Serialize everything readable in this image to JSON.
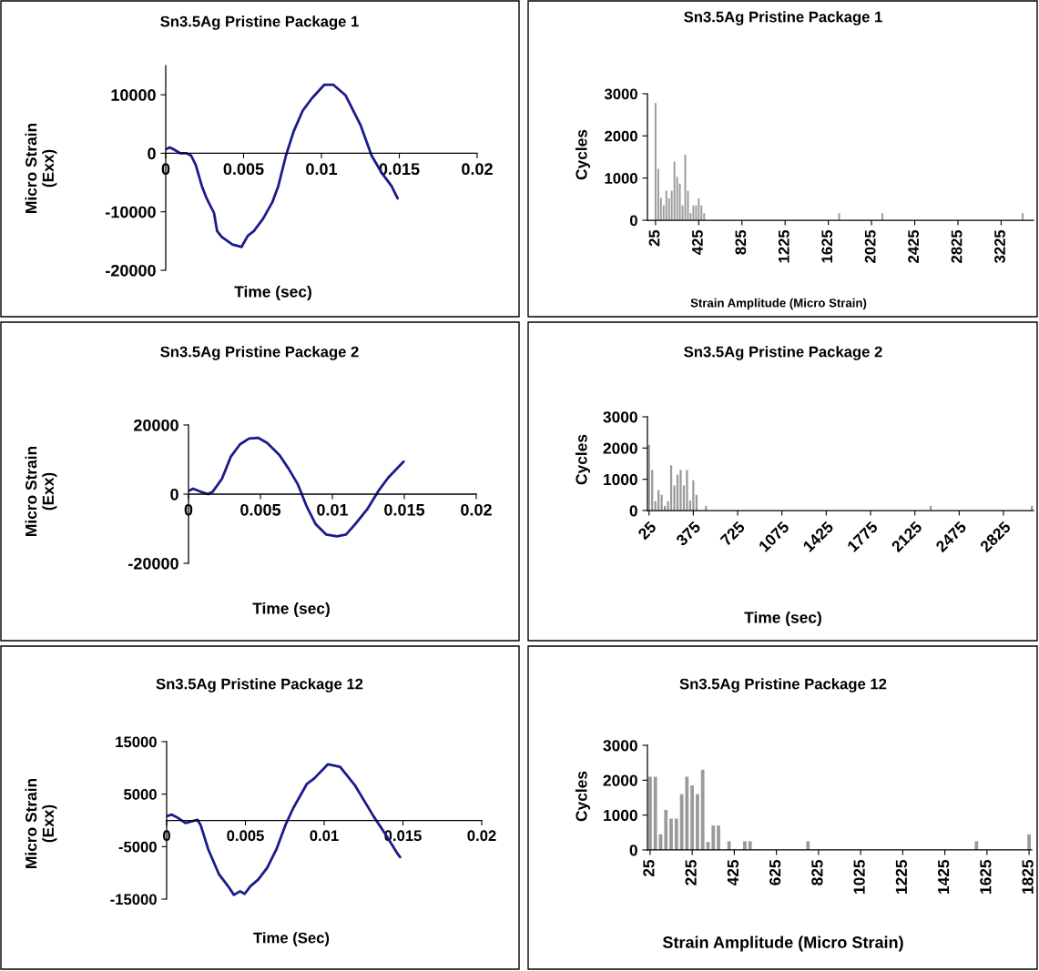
{
  "chart_data": [
    {
      "type": "line",
      "title": "Sn3.5Ag Pristine Package 1",
      "xlabel": "Time (sec)",
      "ylabel": "Micro Strain\n(Exx)",
      "xlim": [
        0,
        0.02
      ],
      "xticks": [
        0,
        0.005,
        0.01,
        0.015,
        0.02
      ],
      "ylim": [
        -20000,
        15000
      ],
      "yticks": [
        -20000,
        -10000,
        0,
        10000
      ],
      "series": [
        {
          "color": "#1a1a8c",
          "x": [
            0,
            0.00026,
            0.00055,
            0.00094,
            0.00134,
            0.00163,
            0.00193,
            0.00232,
            0.00261,
            0.0031,
            0.0033,
            0.0036,
            0.00428,
            0.00487,
            0.00527,
            0.00566,
            0.00625,
            0.00684,
            0.00723,
            0.00772,
            0.00821,
            0.0088,
            0.00939,
            0.01018,
            0.01077,
            0.01155,
            0.01253,
            0.01322,
            0.01391,
            0.0145,
            0.01489
          ],
          "values": [
            700,
            1000,
            600,
            0,
            0,
            -400,
            -2000,
            -5600,
            -7600,
            -10200,
            -13300,
            -14300,
            -15600,
            -16000,
            -14100,
            -13300,
            -11200,
            -8400,
            -5600,
            -400,
            3700,
            7300,
            9400,
            11700,
            11700,
            9900,
            4700,
            -400,
            -3500,
            -5600,
            -7700
          ]
        }
      ]
    },
    {
      "type": "line",
      "title": "Sn3.5Ag Pristine Package 2",
      "xlabel": "Time (sec)",
      "ylabel": "Micro Strain\n(Exx)",
      "xlim": [
        0,
        0.02
      ],
      "xticks": [
        0,
        0.005,
        0.01,
        0.015,
        0.02
      ],
      "ylim": [
        -20000,
        20000
      ],
      "yticks": [
        -20000,
        0,
        20000
      ],
      "series": [
        {
          "color": "#1a1a8c",
          "x": [
            0,
            0.00032,
            0.00084,
            0.00137,
            0.00168,
            0.00232,
            0.00295,
            0.00358,
            0.00421,
            0.00484,
            0.00547,
            0.00632,
            0.00695,
            0.00758,
            0.00821,
            0.00884,
            0.00958,
            0.01032,
            0.01095,
            0.01158,
            0.01242,
            0.01326,
            0.01389,
            0.01495
          ],
          "values": [
            900,
            1600,
            700,
            0,
            700,
            4400,
            10900,
            14400,
            16100,
            16300,
            14800,
            11300,
            7400,
            3000,
            -3500,
            -8700,
            -11700,
            -12200,
            -11700,
            -8700,
            -4400,
            1300,
            4800,
            9400
          ]
        }
      ]
    },
    {
      "type": "line",
      "title": "Sn3.5Ag Pristine Package 12",
      "xlabel": "Time (Sec)",
      "ylabel": "Micro Strain\n(Exx)",
      "xlim": [
        0,
        0.02
      ],
      "xticks": [
        0,
        0.005,
        0.01,
        0.015,
        0.02
      ],
      "ylim": [
        -15000,
        15000
      ],
      "yticks": [
        -15000,
        -5000,
        5000,
        15000
      ],
      "series": [
        {
          "color": "#1a1a8c",
          "x": [
            0,
            0.00033,
            0.00071,
            0.00119,
            0.00158,
            0.00196,
            0.00216,
            0.00264,
            0.00331,
            0.00389,
            0.00427,
            0.00466,
            0.00495,
            0.00533,
            0.00581,
            0.00639,
            0.00697,
            0.00754,
            0.00803,
            0.00889,
            0.00937,
            0.01024,
            0.01101,
            0.01197,
            0.01313,
            0.0139,
            0.01467,
            0.01482
          ],
          "values": [
            800,
            1100,
            500,
            -500,
            -200,
            100,
            -900,
            -5500,
            -10200,
            -12500,
            -14200,
            -13500,
            -14000,
            -12500,
            -11300,
            -9000,
            -5500,
            -900,
            2300,
            6900,
            8000,
            10700,
            10200,
            6600,
            800,
            -2700,
            -6400,
            -7000
          ]
        }
      ]
    },
    {
      "type": "bar",
      "title": "Sn3.5Ag Pristine Package 1",
      "xlabel": "Strain Amplitude (Micro Strain)",
      "ylabel": "Cycles",
      "xlim": [
        -50,
        3525
      ],
      "xticks": [
        25,
        425,
        825,
        1225,
        1625,
        2025,
        2425,
        2825,
        3225
      ],
      "ylim": [
        0,
        3000
      ],
      "yticks": [
        0,
        1000,
        2000,
        3000
      ],
      "color": "#9a9a9a",
      "x": [
        25,
        50,
        75,
        100,
        125,
        150,
        175,
        200,
        225,
        250,
        275,
        300,
        325,
        350,
        375,
        400,
        425,
        450,
        475,
        1725,
        2125,
        3425
      ],
      "values": [
        2780,
        1220,
        530,
        350,
        700,
        520,
        700,
        1390,
        1030,
        870,
        350,
        1560,
        700,
        170,
        350,
        350,
        520,
        350,
        170,
        170,
        170,
        170
      ]
    },
    {
      "type": "bar",
      "title": "Sn3.5Ag Pristine Package 2",
      "xlabel": "Time (sec)",
      "ylabel": "Cycles",
      "xlim": [
        12.5,
        3062.5
      ],
      "xticks": [
        25,
        375,
        725,
        1075,
        1425,
        1775,
        2125,
        2475,
        2825
      ],
      "ylim": [
        0,
        3000
      ],
      "yticks": [
        0,
        1000,
        2000,
        3000
      ],
      "color": "#9a9a9a",
      "x": [
        25,
        50,
        75,
        100,
        125,
        150,
        175,
        200,
        225,
        250,
        275,
        300,
        325,
        350,
        375,
        400,
        475,
        2250,
        3050
      ],
      "values": [
        2100,
        1300,
        300,
        650,
        500,
        150,
        300,
        1450,
        800,
        1150,
        1300,
        800,
        1300,
        320,
        970,
        500,
        150,
        150,
        150
      ]
    },
    {
      "type": "bar",
      "title": "Sn3.5Ag Pristine Package 12",
      "xlabel": "Strain Amplitude (Micro Strain)",
      "ylabel": "Cycles",
      "xlim": [
        12.5,
        1837.5
      ],
      "xticks": [
        25,
        225,
        425,
        625,
        825,
        1025,
        1225,
        1425,
        1625,
        1825
      ],
      "ylim": [
        0,
        3000
      ],
      "yticks": [
        0,
        1000,
        2000,
        3000
      ],
      "color": "#9a9a9a",
      "x": [
        25,
        50,
        75,
        100,
        125,
        150,
        175,
        200,
        225,
        250,
        275,
        300,
        325,
        350,
        400,
        475,
        500,
        775,
        1575,
        1825
      ],
      "values": [
        2100,
        2100,
        450,
        1150,
        900,
        900,
        1600,
        2100,
        1850,
        1600,
        2300,
        230,
        700,
        700,
        250,
        250,
        250,
        250,
        250,
        450
      ]
    }
  ]
}
